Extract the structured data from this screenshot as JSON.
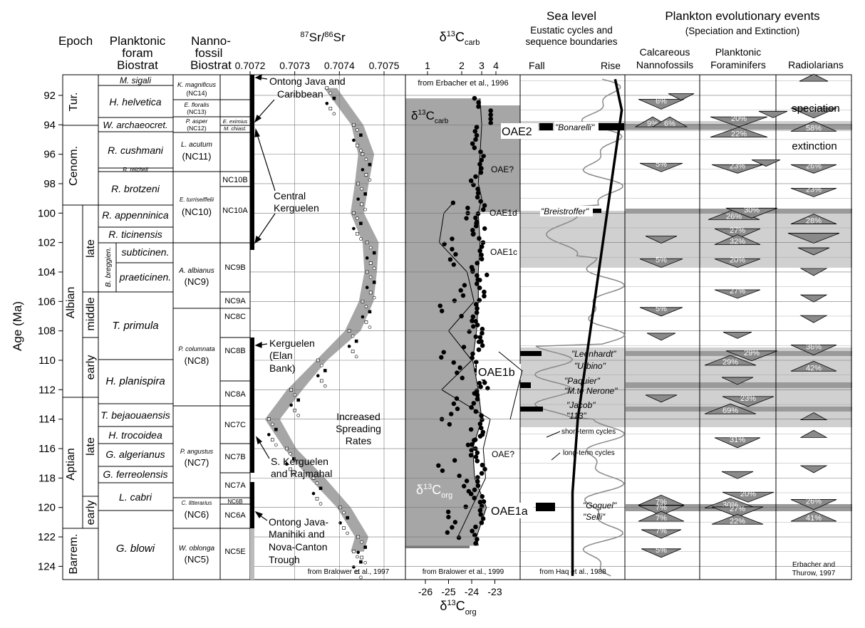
{
  "headers": {
    "epoch": "Epoch",
    "foram": [
      "Planktonic",
      "foram",
      "Biostrat"
    ],
    "nanno": [
      "Nanno-",
      "fossil",
      "Biostrat"
    ],
    "sr_sup1": "87",
    "sr_mid": "Sr/",
    "sr_sup2": "86",
    "sr_end": "Sr",
    "d13c_delta": "δ",
    "d13c_sup": "13",
    "d13c_C": "C",
    "d13c_sub": "carb",
    "sealevel": "Sea level",
    "sealevel_sub1": "Eustatic cycles and",
    "sealevel_sub2": "sequence boundaries",
    "fall": "Fall",
    "rise": "Rise",
    "plankton": "Plankton evolutionary events",
    "plankton_sub": "(Speciation and Extinction)",
    "calc1": "Calcareous",
    "calc2": "Nannofossils",
    "plank1": "Planktonic",
    "plank2": "Foraminifers",
    "radio": "Radiolarians",
    "age_axis": "Age (Ma)",
    "org_delta": "δ",
    "org_sup": "13",
    "org_C": "C",
    "org_sub": "org"
  },
  "age_ticks": [
    "92",
    "94",
    "96",
    "98",
    "100",
    "102",
    "104",
    "106",
    "108",
    "110",
    "112",
    "114",
    "116",
    "118",
    "120",
    "122",
    "124"
  ],
  "sr_ticks": [
    "0.7072",
    "0.7073",
    "0.7074",
    "0.7075"
  ],
  "carb_ticks": [
    "1",
    "2",
    "3",
    "4"
  ],
  "org_ticks": [
    "-26",
    "-25",
    "-24",
    "-23"
  ],
  "epochs": {
    "tur": "Tur.",
    "cenom": "Cenom.",
    "albian": "Albian",
    "aptian": "Aptian",
    "barrem": "Barrem.",
    "late1": "late",
    "middle": "middle",
    "early1": "early",
    "late2": "late",
    "early2": "early",
    "breggien": "B. breggien."
  },
  "forams": {
    "sigali": "M. sigali",
    "helvetica": "H. helvetica",
    "archaeocret": "W. archaeocret.",
    "cushmani": "R. cushmani",
    "reicheli": "R. reicheli",
    "brotzeni": "R. brotzeni",
    "appenninica": "R. appenninica",
    "ticinensis": "R. ticinensis",
    "subticinen": "subticinen.",
    "praeticinen": "praeticinen.",
    "primula": "T. primula",
    "planispira": "H. planispira",
    "bejaouaensis": "T. bejaouaensis",
    "trocoidea": "H. trocoidea",
    "algerianus": "G. algerianus",
    "ferreolensis": "G. ferreolensis",
    "cabri": "L. cabri",
    "blowi": "G. blowi"
  },
  "nannos": {
    "magnificus": "K. magnificus",
    "nc14": "(NC14)",
    "floralis": "E. floralis",
    "nc13": "(NC13)",
    "asper": "P. asper",
    "nc12": "(NC12)",
    "eximius": "E. eximius",
    "chiast": "M. chiast.",
    "acutum": "L. acutum",
    "nc11": "(NC11)",
    "nc10b": "NC10B",
    "turriseiffelii": "E. turriseiffelii",
    "nc10": "(NC10)",
    "nc10a": "NC10A",
    "albianus": "A. albianus",
    "nc9": "(NC9)",
    "nc9b": "NC9B",
    "nc9a": "NC9A",
    "nc8c": "NC8C",
    "columnata": "P. columnata",
    "nc8": "(NC8)",
    "nc8b": "NC8B",
    "nc8a": "NC8A",
    "angustus": "P. angustus",
    "nc7": "(NC7)",
    "nc7c": "NC7C",
    "nc7b": "NC7B",
    "nc7a": "NC7A",
    "nc6b": "NC6B",
    "litterarius": "C. litterarius",
    "nc6": "(NC6)",
    "nc6a": "NC6A",
    "oblonga": "W. oblonga",
    "nc5": "(NC5)",
    "nc5e": "NC5E"
  },
  "sr_labels": {
    "ontong1": "Ontong Java and",
    "ontong2": "Caribbean",
    "central1": "Central",
    "central2": "Kerguelen",
    "kerg1": "Kerguelen",
    "kerg2": "(Elan",
    "kerg3": "Bank)",
    "spread1": "Increased",
    "spread2": "Spreading",
    "spread3": "Rates",
    "skerg1": "S. Kerguelen",
    "skerg2": "and Rajmahal",
    "manihiki1": "Ontong Java-",
    "manihiki2": "Manihiki and",
    "manihiki3": "Nova-Canton",
    "manihiki4": "Trough",
    "source": "from Bralower et al., 1997"
  },
  "carb_labels": {
    "source_top": "from Erbacher et al., 1996",
    "source_bottom": "from Bralower et al., 1999",
    "carb_delta": "δ",
    "carb_sup": "13",
    "carb_C": "C",
    "carb_sub": "carb",
    "org_delta": "δ",
    "org_sup": "13",
    "org_C": "C",
    "org_sub": "org"
  },
  "oae": {
    "oae2": "OAE2",
    "oae_q1": "OAE?",
    "oae1d": "OAE1d",
    "oae1c": "OAE1c",
    "oae1b": "OAE1b",
    "oae_q2": "OAE?",
    "oae1a": "OAE1a"
  },
  "sea_labels": {
    "bonarelli": "\"Bonarelli\"",
    "breistroffer": "\"Breistroffer\"",
    "leenhardt": "\"Leenhardt\"",
    "urbino": "\"Urbino\"",
    "paquier": "\"Paquier\"",
    "nerone": "\"M.te Nerone\"",
    "jacob": "\"Jacob\"",
    "n113": "\"113\"",
    "short": "short-term cycles",
    "long": "long-term cycles",
    "goguel": "\"Goguel\"",
    "selli": "\"Selli\"",
    "source": "from Haq et al., 1988"
  },
  "plankton_labels": {
    "speciation": "speciation",
    "extinction": "extinction",
    "source1": "Erbacher and",
    "source2": "Thurow, 1997"
  },
  "pct": {
    "n1": "6%",
    "n2": "9%",
    "n3": "6%",
    "n4": "5%",
    "n5": "5%",
    "n6": "5%",
    "n7": "7%",
    "n8": "7%",
    "n9": "7%",
    "n10": "7%",
    "n11": "5%",
    "p1": "20%",
    "p2": "22%",
    "p3": "23%",
    "p4": "26%",
    "p5": "30%",
    "p6": "27%",
    "p7": "32%",
    "p8": "20%",
    "p9": "27%",
    "p10": "29%",
    "p11": "29%",
    "p12": "69%",
    "p13": "23%",
    "p14": "31%",
    "p15": "30%",
    "p16": "20%",
    "p17": "27%",
    "p18": "22%",
    "r1": "49%",
    "r2": "58%",
    "r3": "26%",
    "r4": "23%",
    "r5": "28%",
    "r6": "36%",
    "r7": "42%",
    "r8": "26%",
    "r9": "41%"
  },
  "colors": {
    "shade_light": "#d0d0d0",
    "shade_mid": "#a6a6a6",
    "shade_dark": "#7a7a7a",
    "band": "#9a9a9a",
    "ink": "#000000"
  },
  "chart_data": {
    "type": "line",
    "series": [
      {
        "name": "δ13Ccarb",
        "x": [
          92.2,
          94,
          96,
          98,
          99,
          100,
          102,
          104,
          106,
          108,
          110,
          112,
          114,
          116,
          118,
          120,
          122,
          122.6
        ],
        "values": [
          2.9,
          3.0,
          2.9,
          2.8,
          3.0,
          2.8,
          2.9,
          2.8,
          2.8,
          2.7,
          2.5,
          2.8,
          3.0,
          2.5,
          2.6,
          3.3,
          2.7,
          2.8
        ]
      },
      {
        "name": "δ13Corg",
        "x": [
          99.3,
          100,
          102,
          104,
          106,
          108,
          110,
          112,
          114,
          116,
          118,
          120,
          122
        ],
        "values": [
          -24.8,
          -25.2,
          -25.4,
          -24.2,
          -23.9,
          -25.0,
          -24.0,
          -25.3,
          -23.2,
          -23.5,
          -23.4,
          -24.0,
          -24.6
        ]
      },
      {
        "name": "87Sr/86Sr",
        "x": [
          91.5,
          94,
          96,
          98,
          100,
          102,
          104,
          106,
          108,
          110,
          112,
          114,
          116,
          118,
          120,
          122,
          123
        ],
        "values": [
          0.70738,
          0.70744,
          0.70746,
          0.70745,
          0.70744,
          0.70747,
          0.70747,
          0.70746,
          0.70743,
          0.70736,
          0.7073,
          0.70725,
          0.70729,
          0.70735,
          0.70741,
          0.70745,
          0.70744
        ]
      }
    ],
    "xlim": [
      90.6,
      124.9
    ],
    "ylabel": "Age (Ma)"
  }
}
